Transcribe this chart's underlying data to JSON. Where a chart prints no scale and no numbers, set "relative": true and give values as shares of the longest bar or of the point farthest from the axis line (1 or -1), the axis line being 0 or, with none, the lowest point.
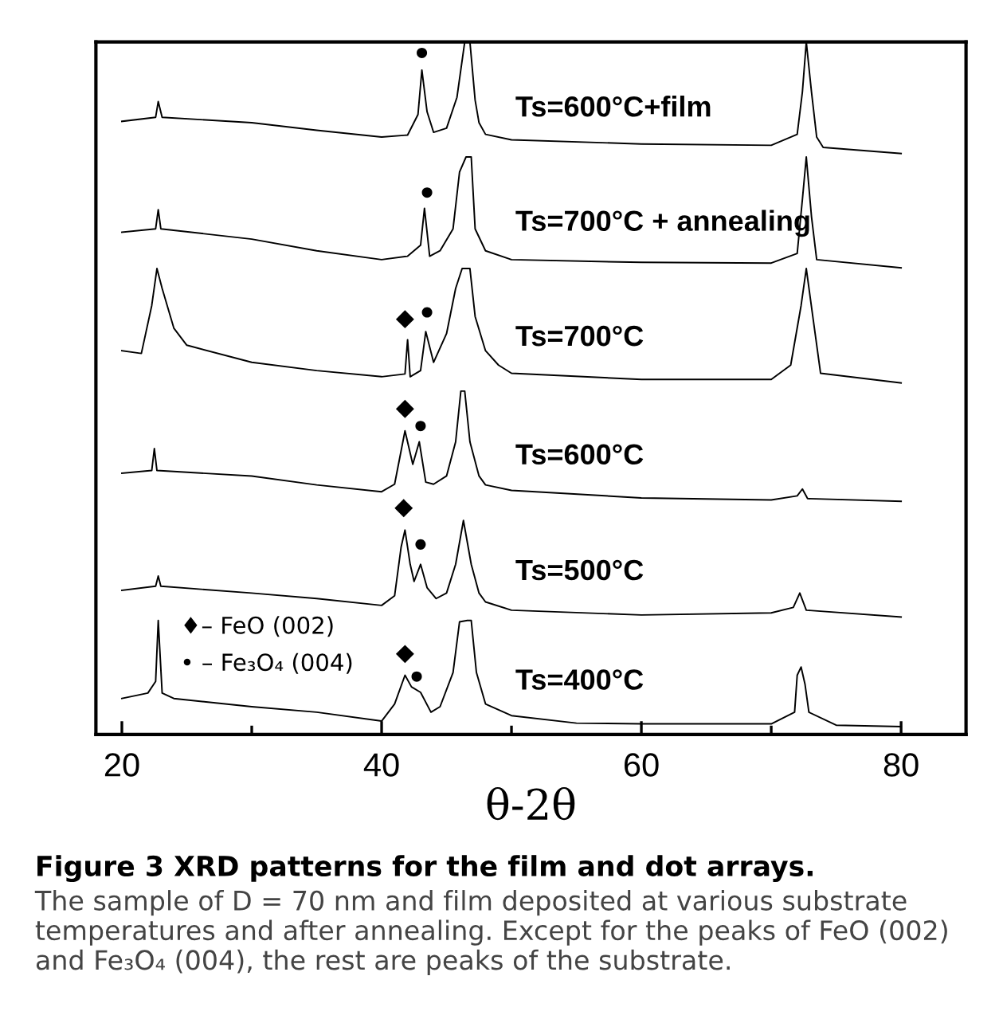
{
  "chart_data": {
    "type": "line",
    "relative": true,
    "xlabel": "θ-2θ",
    "xlim": [
      18,
      85
    ],
    "xticks": [
      20,
      {
        "value": 30,
        "label": null
      },
      40,
      {
        "value": 50,
        "label": null
      },
      60,
      {
        "value": 70,
        "label": null
      },
      80
    ],
    "tick_labels": "x",
    "grid": false,
    "legend": false,
    "marker": "none",
    "line_style": "solid",
    "series": [
      {
        "name": "Ts=600°C+film",
        "color": "#000000",
        "x": [
          20,
          22.6,
          22.8,
          23.1,
          30,
          35,
          40,
          42,
          42.8,
          43.1,
          43.5,
          44,
          45,
          45.8,
          46.4,
          46.8,
          47.2,
          47.5,
          48,
          50,
          60,
          70,
          72,
          72.4,
          72.7,
          73.1,
          73.5,
          74,
          80
        ],
        "values": [
          0.884,
          0.89,
          0.913,
          0.89,
          0.882,
          0.871,
          0.861,
          0.864,
          0.894,
          0.959,
          0.898,
          0.868,
          0.874,
          0.919,
          1.0,
          1.0,
          0.915,
          0.882,
          0.865,
          0.857,
          0.851,
          0.849,
          0.865,
          0.927,
          1.0,
          0.927,
          0.861,
          0.846,
          0.837
        ]
      },
      {
        "name": "Ts=700°C + annealing",
        "color": "#000000",
        "x": [
          20,
          22.6,
          22.8,
          23.0,
          30,
          35,
          40,
          42,
          43,
          43.3,
          43.7,
          44.5,
          45.5,
          46,
          46.5,
          46.9,
          47.2,
          48,
          50,
          60,
          70,
          72,
          72.4,
          72.7,
          73.1,
          73.5,
          80
        ],
        "values": [
          0.722,
          0.727,
          0.755,
          0.727,
          0.712,
          0.695,
          0.682,
          0.687,
          0.703,
          0.757,
          0.687,
          0.695,
          0.727,
          0.81,
          0.832,
          0.832,
          0.727,
          0.695,
          0.682,
          0.678,
          0.677,
          0.691,
          0.77,
          0.832,
          0.745,
          0.682,
          0.67
        ]
      },
      {
        "name": "Ts=700°C",
        "color": "#000000",
        "x": [
          20,
          21.5,
          22.3,
          22.7,
          23.1,
          24,
          25,
          30,
          35,
          40,
          41.8,
          42,
          42.2,
          43,
          43.4,
          44,
          45,
          45.7,
          46.2,
          46.8,
          47.2,
          48,
          49,
          50,
          60,
          70,
          71.5,
          72.3,
          72.7,
          73.2,
          73.8,
          80
        ],
        "values": [
          0.549,
          0.545,
          0.615,
          0.669,
          0.64,
          0.582,
          0.557,
          0.532,
          0.52,
          0.511,
          0.515,
          0.565,
          0.511,
          0.52,
          0.577,
          0.532,
          0.574,
          0.64,
          0.669,
          0.669,
          0.599,
          0.549,
          0.528,
          0.516,
          0.507,
          0.507,
          0.528,
          0.615,
          0.669,
          0.599,
          0.516,
          0.502
        ]
      },
      {
        "name": "Ts=600°C",
        "color": "#000000",
        "x": [
          20,
          22.3,
          22.5,
          22.7,
          30,
          35,
          40,
          41,
          41.8,
          42.4,
          42.9,
          43.4,
          44,
          45,
          45.7,
          46.1,
          46.4,
          46.8,
          47.5,
          48,
          50,
          60,
          70,
          72,
          72.4,
          72.8,
          80
        ],
        "values": [
          0.37,
          0.374,
          0.406,
          0.374,
          0.366,
          0.353,
          0.343,
          0.354,
          0.432,
          0.383,
          0.416,
          0.357,
          0.354,
          0.366,
          0.416,
          0.49,
          0.49,
          0.416,
          0.366,
          0.353,
          0.345,
          0.334,
          0.331,
          0.337,
          0.347,
          0.333,
          0.329
        ]
      },
      {
        "name": "Ts=500°C",
        "color": "#000000",
        "x": [
          20,
          22.6,
          22.8,
          23.0,
          30,
          35,
          40,
          41,
          41.5,
          41.8,
          42.2,
          42.5,
          43,
          43.5,
          44.2,
          45,
          45.7,
          46.3,
          46.9,
          47.5,
          48,
          50,
          60,
          70,
          71.7,
          72.2,
          72.7,
          80
        ],
        "values": [
          0.199,
          0.205,
          0.22,
          0.205,
          0.195,
          0.187,
          0.177,
          0.191,
          0.262,
          0.287,
          0.237,
          0.212,
          0.237,
          0.203,
          0.187,
          0.195,
          0.237,
          0.301,
          0.237,
          0.195,
          0.182,
          0.17,
          0.163,
          0.166,
          0.174,
          0.195,
          0.17,
          0.16
        ]
      },
      {
        "name": "Ts=400°C",
        "color": "#000000",
        "x": [
          20,
          22,
          22.6,
          22.8,
          23.1,
          24,
          30,
          35,
          40,
          41,
          41.8,
          42.3,
          43,
          43.8,
          44.5,
          45.5,
          46,
          46.6,
          46.9,
          47.3,
          48,
          50,
          55,
          60,
          70,
          71.8,
          72,
          72.3,
          72.6,
          72.9,
          75,
          80
        ],
        "values": [
          0.041,
          0.049,
          0.066,
          0.155,
          0.049,
          0.041,
          0.029,
          0.021,
          0.008,
          0.033,
          0.075,
          0.058,
          0.05,
          0.021,
          0.029,
          0.079,
          0.153,
          0.155,
          0.155,
          0.079,
          0.033,
          0.016,
          0.005,
          0.004,
          0.004,
          0.021,
          0.075,
          0.087,
          0.062,
          0.021,
          0.002,
          0.0
        ]
      },
      {
        "type": "scatter",
        "marker": "diamond",
        "color": "#000000",
        "x": [
          41.8,
          41.8,
          41.7,
          41.8
        ],
        "values": [
          0.595,
          0.464,
          0.319,
          0.106
        ]
      },
      {
        "type": "scatter",
        "marker": "circle",
        "color": "#000000",
        "x": [
          43.1,
          43.5,
          43.5,
          43.0,
          43.0,
          42.7
        ],
        "values": [
          0.984,
          0.78,
          0.605,
          0.439,
          0.266,
          0.073
        ]
      }
    ],
    "annotations": [
      "♦– FeO (002)",
      "• – Fe₃O₄ (004)",
      "Figure 3 XRD patterns for the film and dot arrays.",
      "The sample of D = 70 nm and film deposited at various substrate temperatures and after annealing. Except for the peaks of FeO (002) and Fe₃O₄ (004), the rest are peaks of the substrate."
    ]
  }
}
